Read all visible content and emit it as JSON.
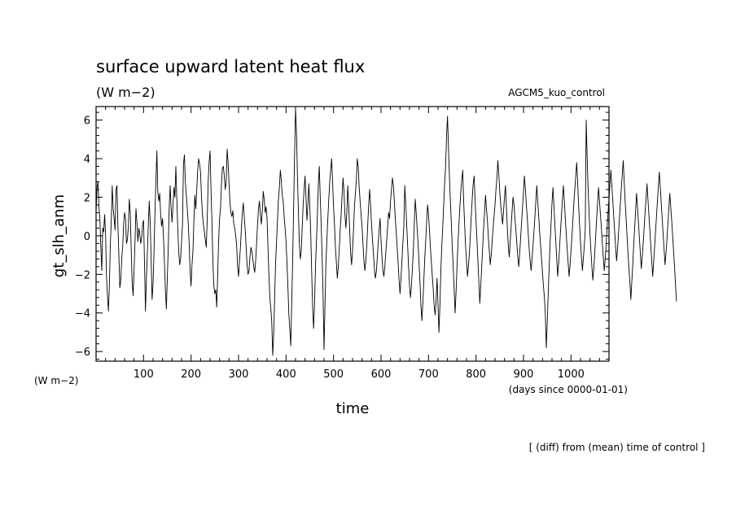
{
  "chart_data": {
    "type": "line",
    "title": "surface upward latent heat flux",
    "units_top": "(W m−2)",
    "experiment": "AGCM5_kuo_control",
    "ylabel": "gt_slh_anm",
    "ylabel_units": "(W m−2)",
    "xlabel": "time",
    "xunits": "(days since 0000-01-01)",
    "footnote": "[ (diff) from (mean) time of control ]",
    "xlim": [
      0,
      1080
    ],
    "ylim": [
      -6.5,
      6.7
    ],
    "xticks": [
      100,
      200,
      300,
      400,
      500,
      600,
      700,
      800,
      900,
      1000
    ],
    "yticks": [
      -6,
      -4,
      -2,
      0,
      2,
      4,
      6
    ],
    "grid": false,
    "x_step": 2,
    "y": [
      1.2,
      2.5,
      2.8,
      1.5,
      0.9,
      -0.6,
      -1.8,
      0.4,
      0.2,
      1.1,
      0.1,
      -2.2,
      -3.1,
      -3.9,
      -2.6,
      -0.5,
      0.8,
      2.6,
      1.4,
      0.9,
      0.3,
      2.4,
      2.6,
      0.5,
      -1.0,
      -2.7,
      -2.3,
      -1.2,
      -0.6,
      0.6,
      1.2,
      0.9,
      -0.4,
      -0.2,
      0.5,
      1.9,
      1.2,
      -0.7,
      -2.4,
      -3.1,
      -1.8,
      -0.3,
      1.4,
      0.7,
      -0.3,
      0.4,
      0.1,
      -0.4,
      -0.1,
      0.6,
      0.8,
      -1.4,
      -3.9,
      -2.2,
      -0.9,
      0.6,
      1.8,
      0.7,
      -1.3,
      -3.3,
      -2.5,
      -0.8,
      1.2,
      2.8,
      4.4,
      2.3,
      1.8,
      2.2,
      1.1,
      0.5,
      0.9,
      -0.1,
      -1.4,
      -2.8,
      -3.8,
      -2.2,
      -0.6,
      1.5,
      2.6,
      1.4,
      0.7,
      1.6,
      2.5,
      2.0,
      3.6,
      1.9,
      0.4,
      -0.8,
      -1.5,
      -1.2,
      -0.3,
      0.6,
      3.7,
      4.2,
      2.8,
      2.1,
      1.4,
      0.7,
      -0.4,
      -1.8,
      -2.6,
      -1.5,
      -0.8,
      0.8,
      2.1,
      1.4,
      2.4,
      3.4,
      4.0,
      3.7,
      3.3,
      2.0,
      1.1,
      0.6,
      0.2,
      -0.2,
      -0.6,
      0.8,
      2.8,
      3.8,
      4.4,
      2.4,
      0.7,
      -1.4,
      -2.6,
      -3.0,
      -2.8,
      -3.7,
      -2.1,
      -0.3,
      0.9,
      1.4,
      2.7,
      3.5,
      3.6,
      3.1,
      2.4,
      2.8,
      4.5,
      3.8,
      2.7,
      1.7,
      1.2,
      1.0,
      1.3,
      0.6,
      0.4,
      0.0,
      -0.5,
      -1.6,
      -2.1,
      -1.3,
      -0.6,
      0.4,
      1.2,
      1.7,
      1.0,
      0.3,
      -0.6,
      -1.5,
      -2.0,
      -1.8,
      -1.1,
      -0.6,
      -0.8,
      -1.2,
      -1.6,
      -1.9,
      -1.3,
      -0.4,
      0.6,
      1.4,
      1.8,
      1.1,
      0.6,
      1.3,
      2.3,
      1.9,
      1.2,
      1.5,
      0.9,
      -0.6,
      -2.1,
      -3.2,
      -3.8,
      -4.5,
      -6.2,
      -5.1,
      -3.2,
      -1.4,
      -0.3,
      0.8,
      1.9,
      2.5,
      3.4,
      2.9,
      2.1,
      1.8,
      1.0,
      0.4,
      -0.3,
      -1.4,
      -2.7,
      -4.1,
      -4.9,
      -5.7,
      -3.4,
      -1.2,
      1.5,
      4.2,
      6.6,
      5.4,
      3.1,
      1.3,
      -0.4,
      -1.2,
      -0.8,
      0.4,
      1.6,
      2.4,
      3.1,
      2.0,
      0.8,
      1.6,
      2.7,
      1.6,
      0.1,
      -1.9,
      -3.7,
      -4.8,
      -3.5,
      -1.6,
      -0.3,
      1.1,
      2.7,
      3.6,
      2.0,
      0.6,
      -1.1,
      -3.1,
      -5.9,
      -3.6,
      -1.4,
      -0.2,
      0.9,
      1.9,
      2.8,
      3.4,
      4.0,
      2.8,
      1.5,
      0.6,
      -0.6,
      -1.4,
      -2.2,
      -1.6,
      -0.7,
      0.3,
      1.1,
      2.1,
      3.0,
      2.3,
      1.1,
      0.4,
      1.2,
      2.6,
      1.5,
      0.3,
      -0.9,
      -1.5,
      -0.8,
      0.3,
      1.5,
      2.2,
      2.9,
      4.0,
      3.6,
      2.5,
      1.8,
      1.1,
      0.5,
      -0.4,
      -1.3,
      -1.8,
      -1.3,
      -0.5,
      0.6,
      1.6,
      2.4,
      1.6,
      0.6,
      -0.2,
      -0.9,
      -1.7,
      -2.2,
      -1.9,
      -1.2,
      -0.4,
      0.3,
      0.9,
      -0.2,
      -1.1,
      -1.8,
      -2.1,
      -1.6,
      -0.9,
      -0.2,
      0.5,
      1.2,
      0.9,
      1.8,
      2.4,
      3.0,
      2.6,
      1.8,
      0.9,
      0.2,
      -0.6,
      -1.4,
      -2.3,
      -3.0,
      -2.2,
      -1.3,
      -0.4,
      0.5,
      2.6,
      1.7,
      0.6,
      -0.5,
      -1.6,
      -2.6,
      -3.2,
      -2.6,
      -1.7,
      -0.8,
      0.6,
      1.9,
      1.2,
      0.4,
      -0.4,
      -1.4,
      -2.4,
      -3.6,
      -4.4,
      -3.5,
      -2.4,
      -1.2,
      -0.3,
      0.7,
      1.6,
      1.1,
      0.3,
      -0.6,
      -1.4,
      -2.1,
      -2.8,
      -3.7,
      -4.1,
      -3.3,
      -2.2,
      -3.6,
      -5.0,
      -3.6,
      -1.8,
      -0.5,
      0.5,
      1.6,
      2.8,
      3.6,
      5.2,
      6.2,
      4.6,
      3.1,
      1.8,
      0.7,
      -0.6,
      -1.6,
      -2.8,
      -4.0,
      -2.9,
      -1.6,
      -0.4,
      0.6,
      1.5,
      2.3,
      2.9,
      3.4,
      1.8,
      0.6,
      -0.5,
      -1.3,
      -2.1,
      -1.6,
      -0.9,
      0.0,
      1.0,
      1.9,
      2.7,
      3.1,
      1.9,
      0.8,
      -0.2,
      -1.3,
      -2.4,
      -3.5,
      -2.6,
      -1.6,
      -0.6,
      0.4,
      1.2,
      2.1,
      1.4,
      0.8,
      -0.1,
      -0.8,
      -1.5,
      -1.0,
      -0.3,
      0.4,
      1.0,
      1.6,
      2.4,
      3.0,
      3.9,
      3.2,
      2.3,
      1.6,
      1.1,
      0.6,
      1.3,
      2.0,
      2.6,
      1.5,
      0.4,
      -0.5,
      -1.1,
      -0.3,
      0.5,
      1.3,
      2.0,
      1.6,
      0.9,
      0.3,
      -0.4,
      -1.1,
      -1.6,
      -0.9,
      -0.1,
      0.7,
      1.5,
      2.3,
      3.1,
      2.4,
      1.6,
      0.9,
      0.1,
      -0.7,
      -1.3,
      -1.8,
      -1.2,
      -0.5,
      0.2,
      1.0,
      1.8,
      2.6,
      1.8,
      1.0,
      0.2,
      -0.5,
      -1.2,
      -1.9,
      -2.6,
      -3.2,
      -4.1,
      -5.8,
      -4.5,
      -3.0,
      -1.6,
      -0.4,
      0.6,
      1.7,
      2.5,
      1.6,
      0.6,
      -0.3,
      -1.2,
      -2.1,
      -1.4,
      -0.6,
      0.3,
      1.1,
      1.9,
      2.6,
      1.8,
      0.9,
      0.1,
      -0.7,
      -1.4,
      -2.1,
      -1.5,
      -0.8,
      0.0,
      0.8,
      1.7,
      2.4,
      3.1,
      3.8,
      2.8,
      1.6,
      0.6,
      -0.3,
      -1.1,
      -1.8,
      -1.2,
      -0.5,
      0.3,
      6.0,
      4.1,
      2.5,
      1.2,
      0.1,
      -0.8,
      -1.6,
      -2.3,
      -1.7,
      -0.9,
      0.0,
      0.9,
      1.7,
      2.5,
      1.8,
      1.1,
      0.4,
      -0.4,
      -1.1,
      -1.8,
      -1.2,
      -0.4,
      0.4,
      1.2,
      1.9,
      2.7,
      3.4,
      2.6,
      1.8,
      1.0,
      0.2,
      -0.6,
      -1.3,
      -0.7,
      0.1,
      0.9,
      1.7,
      2.5,
      3.2,
      3.9,
      2.8,
      1.8,
      0.9,
      0.0,
      -0.9,
      -1.7,
      -2.4,
      -3.3,
      -2.4,
      -1.5,
      -0.5,
      0.4,
      1.3,
      2.2,
      1.5,
      0.7,
      -0.1,
      -0.9,
      -1.7,
      -1.1,
      -0.4,
      0.4,
      1.2,
      1.9,
      2.7,
      1.9,
      1.1,
      0.3,
      -0.5,
      -1.3,
      -2.1,
      -1.4,
      -0.6,
      0.2,
      1.0,
      1.8,
      2.6,
      3.3,
      2.5,
      1.7,
      0.9,
      0.1,
      -0.7,
      -1.5,
      -0.9,
      -0.2,
      0.6,
      1.4,
      2.2,
      1.5,
      0.8,
      0.0,
      -0.8,
      -1.6,
      -2.5,
      -3.4
    ]
  }
}
